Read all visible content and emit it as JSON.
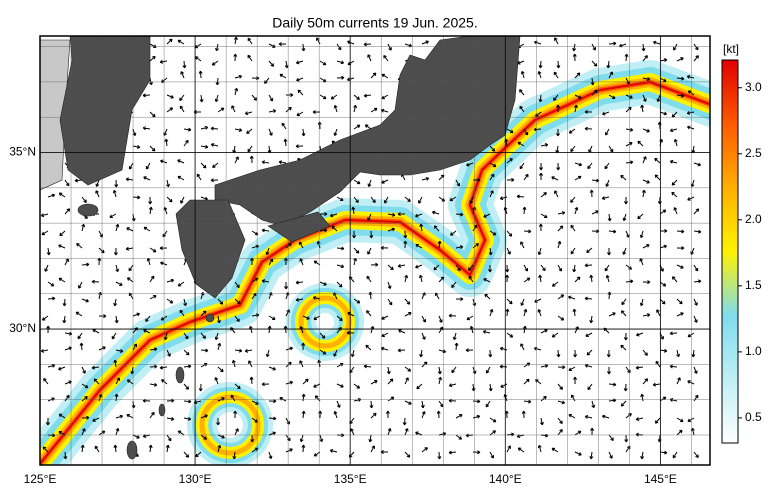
{
  "title": "Daily 50m currents 19 Jun. 2025.",
  "map": {
    "lon_range": [
      125,
      146.6
    ],
    "lat_range": [
      26.15,
      38.3
    ],
    "lon_ticks": [
      {
        "value": 125,
        "label": "125°E"
      },
      {
        "value": 130,
        "label": "130°E"
      },
      {
        "value": 135,
        "label": "135°E"
      },
      {
        "value": 140,
        "label": "140°E"
      },
      {
        "value": 145,
        "label": "145°E"
      }
    ],
    "lat_ticks": [
      {
        "value": 30,
        "label": "30°N"
      },
      {
        "value": 35,
        "label": "35°N"
      }
    ]
  },
  "colorbar": {
    "unit": "[kt]",
    "range": [
      0.31,
      3.21
    ],
    "colors": [
      "#ffffff",
      "#bfeff5",
      "#7fdcec",
      "#fff200",
      "#ffb000",
      "#ff5a00",
      "#e00000"
    ],
    "ticks": [
      0.5,
      {
        "value": 1,
        "label": "1.0"
      },
      1.5,
      {
        "value": 2,
        "label": "2.0"
      },
      2.5,
      {
        "value": 3,
        "label": "3.0"
      }
    ]
  }
}
